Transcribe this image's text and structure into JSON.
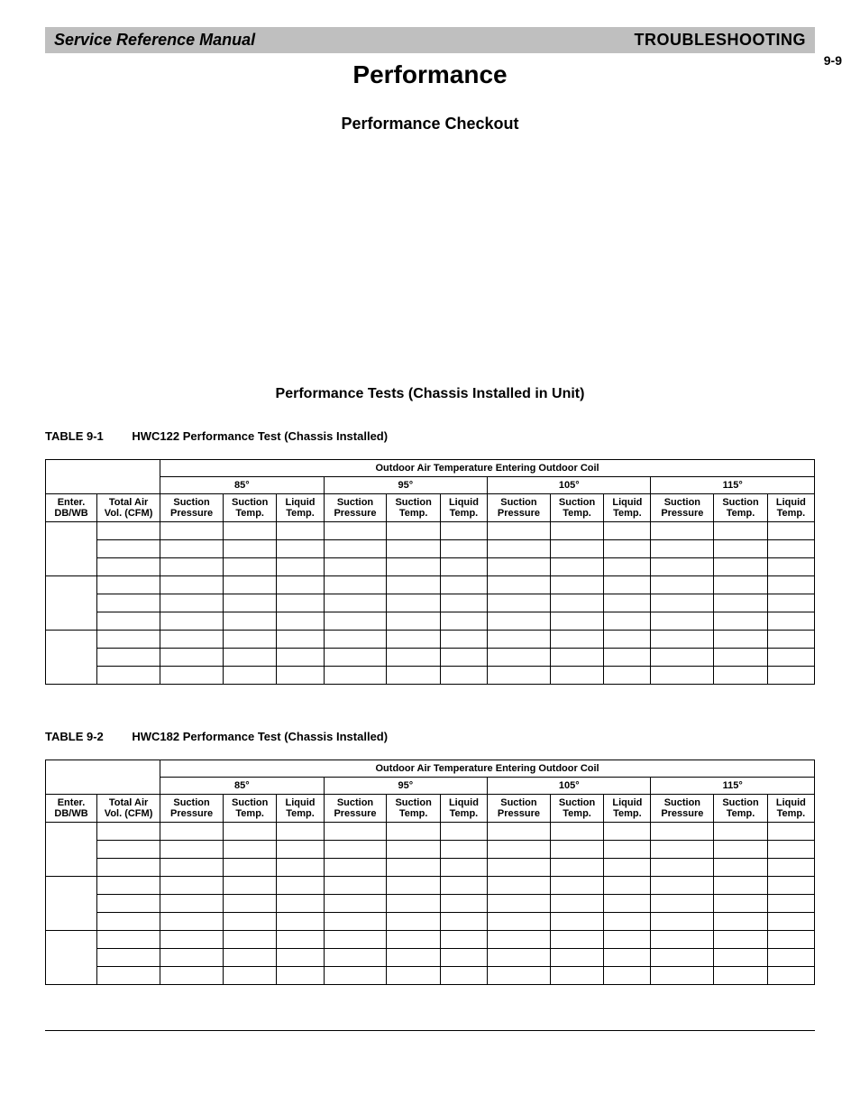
{
  "header": {
    "left": "Service Reference Manual",
    "right": "TROUBLESHOOTING",
    "page_number": "9-9"
  },
  "titles": {
    "main": "Performance",
    "sub": "Performance Checkout",
    "section": "Performance Tests (Chassis Installed in Unit)"
  },
  "table_common": {
    "outdoor_header": "Outdoor Air Temperature Entering Outdoor Coil",
    "temp_columns": [
      "85°",
      "95°",
      "105°",
      "115°"
    ],
    "row_header_1": "Enter. DB/WB",
    "row_header_2": "Total Air Vol. (CFM)",
    "sub_columns": [
      "Suction Pressure",
      "Suction Temp.",
      "Liquid Temp."
    ]
  },
  "table1": {
    "label": "TABLE 9-1",
    "caption": "HWC122 Performance Test (Chassis Installed)"
  },
  "table2": {
    "label": "TABLE 9-2",
    "caption": "HWC182 Performance Test (Chassis Installed)"
  },
  "styling": {
    "header_bg": "#bfbfbf",
    "border_color": "#000000",
    "background": "#ffffff",
    "main_title_fontsize": 28,
    "sub_title_fontsize": 18,
    "section_title_fontsize": 16,
    "table_caption_fontsize": 13,
    "table_header_fontsize": 11,
    "data_row_height": 20,
    "num_data_groups": 3,
    "rows_per_group": 3
  }
}
